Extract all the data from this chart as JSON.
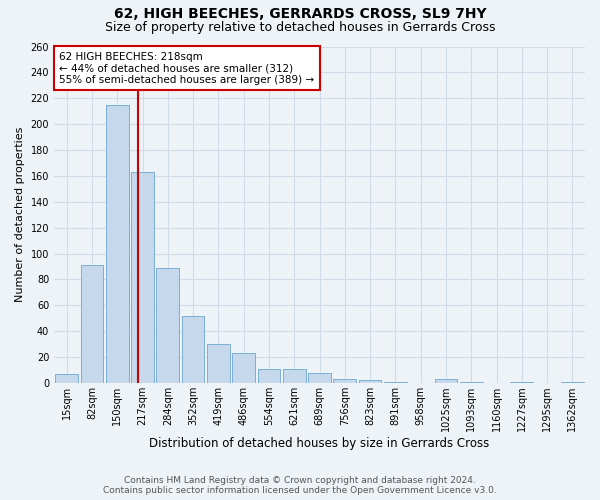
{
  "title": "62, HIGH BEECHES, GERRARDS CROSS, SL9 7HY",
  "subtitle": "Size of property relative to detached houses in Gerrards Cross",
  "xlabel": "Distribution of detached houses by size in Gerrards Cross",
  "ylabel": "Number of detached properties",
  "footer_line1": "Contains HM Land Registry data © Crown copyright and database right 2024.",
  "footer_line2": "Contains public sector information licensed under the Open Government Licence v3.0.",
  "categories": [
    "15sqm",
    "82sqm",
    "150sqm",
    "217sqm",
    "284sqm",
    "352sqm",
    "419sqm",
    "486sqm",
    "554sqm",
    "621sqm",
    "689sqm",
    "756sqm",
    "823sqm",
    "891sqm",
    "958sqm",
    "1025sqm",
    "1093sqm",
    "1160sqm",
    "1227sqm",
    "1295sqm",
    "1362sqm"
  ],
  "values": [
    7,
    91,
    215,
    163,
    89,
    52,
    30,
    23,
    11,
    11,
    8,
    3,
    2,
    1,
    0,
    3,
    1,
    0,
    1,
    0,
    1
  ],
  "bar_color": "#c5d8ec",
  "bar_edge_color": "#7aafd4",
  "grid_color": "#d0dce8",
  "background_color": "#eef3f8",
  "vline_x_index": 2.82,
  "vline_color": "#cc0000",
  "vline_label": "62 HIGH BEECHES: 218sqm",
  "annotation_line2": "← 44% of detached houses are smaller (312)",
  "annotation_line3": "55% of semi-detached houses are larger (389) →",
  "annotation_box_color": "#cc0000",
  "ylim": [
    0,
    260
  ],
  "yticks": [
    0,
    20,
    40,
    60,
    80,
    100,
    120,
    140,
    160,
    180,
    200,
    220,
    240,
    260
  ],
  "title_fontsize": 10,
  "subtitle_fontsize": 9,
  "xlabel_fontsize": 8.5,
  "ylabel_fontsize": 8,
  "tick_fontsize": 7,
  "annotation_fontsize": 7.5,
  "footer_fontsize": 6.5
}
